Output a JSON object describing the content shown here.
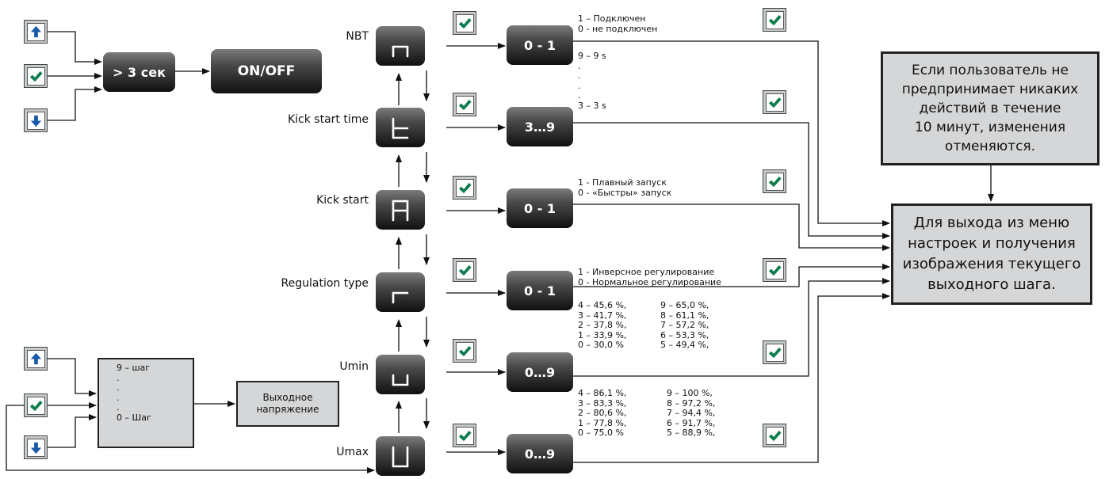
{
  "top": {
    "hold_label": "> 3 сек",
    "onoff_label": "ON/OFF"
  },
  "params": [
    {
      "label": "NBT",
      "value": "0 - 1",
      "note": "1 – Подключен\n0 - не подключен"
    },
    {
      "label": "Kick start time",
      "value": "3…9",
      "note": "9 – 9 s\n.\n.\n.\n.\n3 – 3 s"
    },
    {
      "label": "Kick start",
      "value": "0 - 1",
      "note": "1 - Плавный запуск\n0 - «Быстры» запуск"
    },
    {
      "label": "Regulation type",
      "value": "0 - 1",
      "note": "1 - Инверсное регулирование\n0 - Нормальное регулирование"
    },
    {
      "label": "Umin",
      "value": "0…9",
      "note_a": "4 – 45,6 %,\n3 – 41,7 %,\n2 – 37,8 %,\n1 – 33,9 %,\n0 – 30,0 %",
      "note_b": "9 – 65,0 %,\n8 – 61,1 %,\n7 – 57,2 %,\n6 – 53,3 %,\n5 – 49,4 %,"
    },
    {
      "label": "Umax",
      "value": "0…9",
      "note_a": "4 – 86,1 %,\n3 – 83,3 %,\n2 – 80,6 %,\n1 – 77,8 %,\n0 – 75,0 %",
      "note_b": "9 – 100 %,\n8 – 97,2 %,\n7 – 94,4 %,\n6 – 91,7 %,\n5 – 88,9 %,"
    }
  ],
  "step_list": "9 – шаг\n.\n.\n.\n.\n0 – Шаг",
  "output_voltage": "Выходное\nнапряжение",
  "timeout_note": "Если пользователь не\nпредпринимает никаких\nдействий в течение\n10 минут, изменения\nотменяются.",
  "exit_note": "Для выхода из меню\nнастроек и получения\nизображения текущего\nвыходного шага.",
  "display_glyphs": [
    "n",
    "t",
    "A",
    "r",
    "u",
    "U"
  ],
  "icons": [
    "arrow-up-icon",
    "check-icon",
    "arrow-down-icon",
    "seven-segment-display"
  ]
}
